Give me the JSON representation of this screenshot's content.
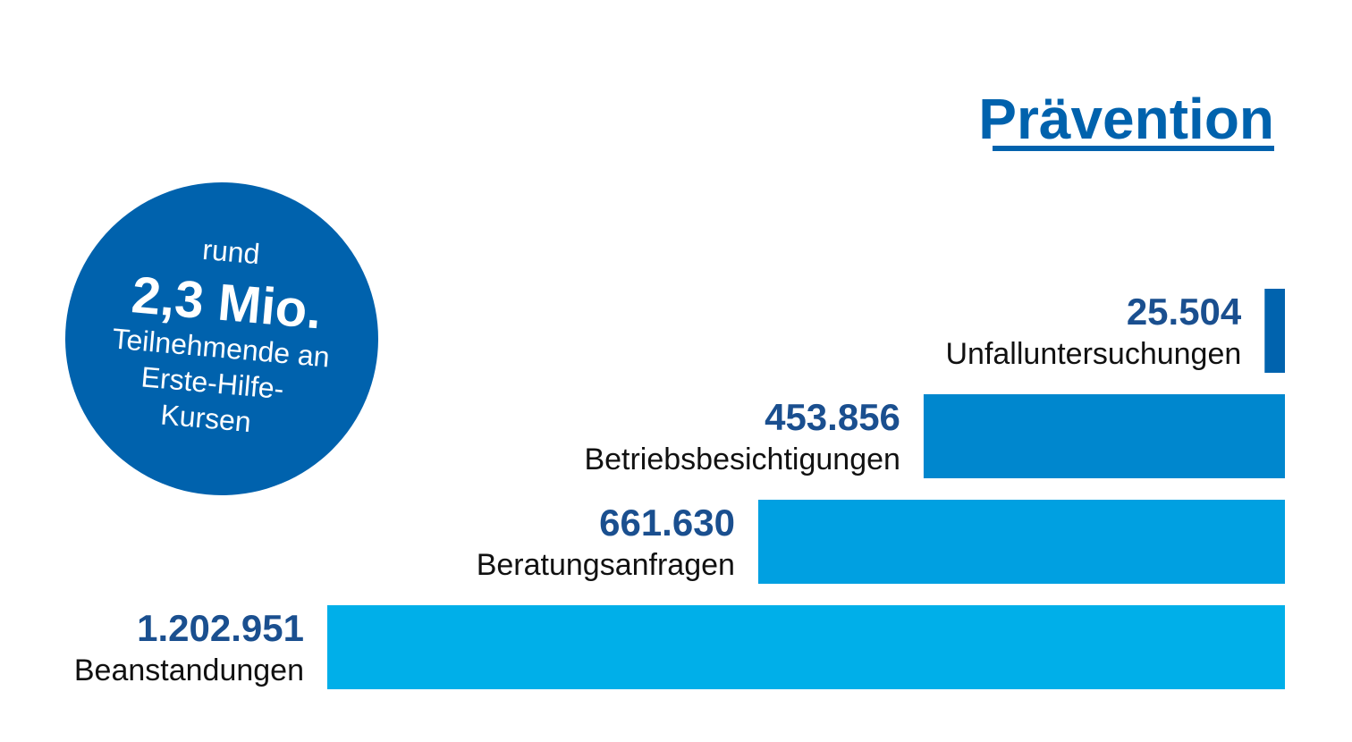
{
  "chart_data": {
    "type": "bar",
    "orientation": "horizontal",
    "alignment": "right",
    "title": "Prävention",
    "categories": [
      "Unfalluntersuchungen",
      "Betriebsbesichtigungen",
      "Beratungsanfragen",
      "Beanstandungen"
    ],
    "values": [
      25504,
      453856,
      661630,
      1202951
    ],
    "value_labels": [
      "25.504",
      "453.856",
      "661.630",
      "1.202.951"
    ],
    "colors": [
      "#0063ae",
      "#0087ce",
      "#00a0e1",
      "#00afe9"
    ],
    "grid": false,
    "legend": "none"
  },
  "callout": {
    "line1": "rund",
    "value": "2,3 Mio.",
    "line2": "Teilnehmende an",
    "line3": "Erste-Hilfe-",
    "line4": "Kursen",
    "color": "#0062ad"
  },
  "colors": {
    "title": "#0062ad",
    "value_text": "#1a4f8f"
  }
}
